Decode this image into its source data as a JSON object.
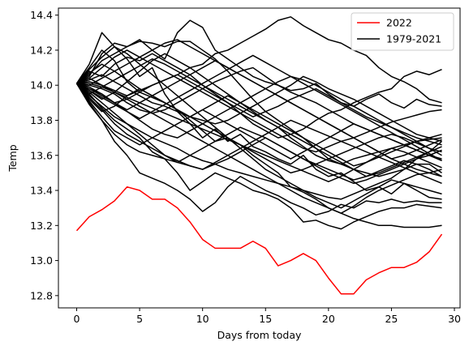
{
  "chart_data": {
    "type": "line",
    "title": "",
    "xlabel": "Days from today",
    "ylabel": "Temp",
    "xlim": [
      -1.45,
      30.45
    ],
    "ylim": [
      12.73,
      14.44
    ],
    "xticks": [
      0,
      5,
      10,
      15,
      20,
      25,
      30
    ],
    "yticks": [
      12.8,
      13.0,
      13.2,
      13.4,
      13.6,
      13.8,
      14.0,
      14.2,
      14.4
    ],
    "grid": false,
    "legend": {
      "placement": "top-right",
      "entries": [
        "2022",
        "1979-2021"
      ]
    },
    "colors": {
      "highlight": "#ff0000",
      "historical": "#000000"
    },
    "x": [
      0,
      1,
      2,
      3,
      4,
      5,
      6,
      7,
      8,
      9,
      10,
      11,
      12,
      13,
      14,
      15,
      16,
      17,
      18,
      19,
      20,
      21,
      22,
      23,
      24,
      25,
      26,
      27,
      28,
      29
    ],
    "series": [
      {
        "name": "2022",
        "color": "#ff0000",
        "values": [
          13.17,
          13.25,
          13.29,
          13.34,
          13.42,
          13.4,
          13.35,
          13.35,
          13.3,
          13.22,
          13.12,
          13.07,
          13.07,
          13.07,
          13.11,
          13.07,
          12.97,
          13.0,
          13.04,
          13.0,
          12.9,
          12.81,
          12.81,
          12.89,
          12.93,
          12.96,
          12.96,
          12.99,
          13.05,
          13.15
        ]
      },
      {
        "name": "1979-2021",
        "color": "#000000",
        "group": "historical",
        "members": [
          [
            14.01,
            14.12,
            14.3,
            14.22,
            14.15,
            14.05,
            14.1,
            13.95,
            13.85,
            13.78,
            13.7,
            13.75,
            13.68,
            13.72,
            13.65,
            13.62,
            13.58,
            13.55,
            13.6,
            13.52,
            13.48,
            13.5,
            13.45,
            13.4,
            13.42,
            13.38,
            13.44,
            13.4,
            13.36,
            13.35
          ],
          [
            14.01,
            14.05,
            14.18,
            14.24,
            14.22,
            14.26,
            14.2,
            14.15,
            14.3,
            14.37,
            14.33,
            14.2,
            14.15,
            14.1,
            14.05,
            14.02,
            14.0,
            13.97,
            13.98,
            14.01,
            13.95,
            13.9,
            13.88,
            13.92,
            13.95,
            13.9,
            13.87,
            13.92,
            13.89,
            13.88
          ],
          [
            14.01,
            13.98,
            13.95,
            13.9,
            13.92,
            13.96,
            14.0,
            14.03,
            14.06,
            14.1,
            14.12,
            14.18,
            14.2,
            14.24,
            14.28,
            14.32,
            14.37,
            14.39,
            14.34,
            14.3,
            14.26,
            14.24,
            14.2,
            14.17,
            14.1,
            14.05,
            14.02,
            13.98,
            13.92,
            13.9
          ],
          [
            14.01,
            13.95,
            13.87,
            13.8,
            13.75,
            13.7,
            13.62,
            13.58,
            13.5,
            13.4,
            13.45,
            13.5,
            13.47,
            13.44,
            13.4,
            13.38,
            13.35,
            13.3,
            13.22,
            13.23,
            13.2,
            13.18,
            13.22,
            13.25,
            13.28,
            13.3,
            13.3,
            13.32,
            13.31,
            13.3
          ],
          [
            14.01,
            13.9,
            13.8,
            13.68,
            13.6,
            13.5,
            13.47,
            13.44,
            13.4,
            13.35,
            13.28,
            13.33,
            13.42,
            13.48,
            13.44,
            13.4,
            13.37,
            13.33,
            13.3,
            13.26,
            13.28,
            13.32,
            13.3,
            13.34,
            13.33,
            13.35,
            13.33,
            13.34,
            13.33,
            13.33
          ],
          [
            14.01,
            14.06,
            14.14,
            14.18,
            14.22,
            14.25,
            14.24,
            14.22,
            14.25,
            14.25,
            14.2,
            14.15,
            14.08,
            14.0,
            13.92,
            13.85,
            13.8,
            13.75,
            13.7,
            13.64,
            13.58,
            13.55,
            13.52,
            13.5,
            13.48,
            13.5,
            13.52,
            13.55,
            13.55,
            13.5
          ],
          [
            14.01,
            14.1,
            14.2,
            14.14,
            14.02,
            13.96,
            13.93,
            13.9,
            13.86,
            13.8,
            13.74,
            13.68,
            13.7,
            13.66,
            13.6,
            13.55,
            13.5,
            13.42,
            13.39,
            13.35,
            13.3,
            13.27,
            13.31,
            13.36,
            13.4,
            13.43,
            13.46,
            13.49,
            13.5,
            13.52
          ],
          [
            14.01,
            14.08,
            14.05,
            14.12,
            14.16,
            14.14,
            14.18,
            14.14,
            14.1,
            14.06,
            14.0,
            13.95,
            13.9,
            13.84,
            13.78,
            13.74,
            13.7,
            13.72,
            13.75,
            13.8,
            13.84,
            13.86,
            13.9,
            13.93,
            13.96,
            13.98,
            14.05,
            14.08,
            14.06,
            14.09
          ],
          [
            14.01,
            13.94,
            13.88,
            13.82,
            13.78,
            13.74,
            13.7,
            13.67,
            13.64,
            13.6,
            13.57,
            13.55,
            13.52,
            13.5,
            13.48,
            13.46,
            13.44,
            13.42,
            13.4,
            13.38,
            13.36,
            13.35,
            13.38,
            13.41,
            13.44,
            13.47,
            13.52,
            13.58,
            13.62,
            13.68
          ],
          [
            14.01,
            14.03,
            14.06,
            14.02,
            13.98,
            13.94,
            13.9,
            13.88,
            13.85,
            13.82,
            13.8,
            13.78,
            13.8,
            13.84,
            13.88,
            13.92,
            13.96,
            14.0,
            14.05,
            14.02,
            13.98,
            13.95,
            13.92,
            13.88,
            13.84,
            13.8,
            13.76,
            13.72,
            13.7,
            13.68
          ],
          [
            14.01,
            13.97,
            13.92,
            13.96,
            14.02,
            14.08,
            14.14,
            14.18,
            14.14,
            14.1,
            14.05,
            14.0,
            13.95,
            13.9,
            13.85,
            13.8,
            13.76,
            13.7,
            13.65,
            13.6,
            13.57,
            13.55,
            13.58,
            13.6,
            13.62,
            13.64,
            13.66,
            13.68,
            13.69,
            13.7
          ],
          [
            14.01,
            14.0,
            13.98,
            13.95,
            13.9,
            13.86,
            13.84,
            13.86,
            13.9,
            13.94,
            13.98,
            14.02,
            14.05,
            14.08,
            14.1,
            14.05,
            14.0,
            13.96,
            13.93,
            13.9,
            13.86,
            13.82,
            13.78,
            13.75,
            13.72,
            13.69,
            13.66,
            13.63,
            13.6,
            13.57
          ],
          [
            14.01,
            13.92,
            13.85,
            13.88,
            13.94,
            13.98,
            13.94,
            13.9,
            13.86,
            13.82,
            13.78,
            13.74,
            13.7,
            13.66,
            13.62,
            13.58,
            13.54,
            13.5,
            13.52,
            13.55,
            13.58,
            13.61,
            13.64,
            13.67,
            13.7,
            13.72,
            13.7,
            13.67,
            13.64,
            13.62
          ],
          [
            14.01,
            14.04,
            14.1,
            14.16,
            14.2,
            14.16,
            14.12,
            14.08,
            14.04,
            14.0,
            13.96,
            13.92,
            13.88,
            13.84,
            13.8,
            13.76,
            13.72,
            13.68,
            13.64,
            13.62,
            13.65,
            13.68,
            13.7,
            13.73,
            13.76,
            13.79,
            13.81,
            13.83,
            13.85,
            13.86
          ],
          [
            14.01,
            13.96,
            13.9,
            13.84,
            13.78,
            13.72,
            13.66,
            13.6,
            13.57,
            13.54,
            13.52,
            13.55,
            13.58,
            13.62,
            13.66,
            13.7,
            13.66,
            13.62,
            13.58,
            13.54,
            13.5,
            13.47,
            13.44,
            13.46,
            13.49,
            13.52,
            13.55,
            13.58,
            13.6,
            13.63
          ],
          [
            14.01,
            14.02,
            14.0,
            13.97,
            13.94,
            13.97,
            14.0,
            14.03,
            14.06,
            14.02,
            13.98,
            13.94,
            13.9,
            13.86,
            13.82,
            13.85,
            13.88,
            13.92,
            13.95,
            13.98,
            13.94,
            13.9,
            13.86,
            13.82,
            13.79,
            13.76,
            13.73,
            13.7,
            13.68,
            13.66
          ],
          [
            14.01,
            13.99,
            13.95,
            13.9,
            13.85,
            13.8,
            13.75,
            13.72,
            13.7,
            13.74,
            13.78,
            13.82,
            13.86,
            13.9,
            13.94,
            13.98,
            14.02,
            14.05,
            14.03,
            14.0,
            13.96,
            13.92,
            13.88,
            13.84,
            13.8,
            13.76,
            13.72,
            13.68,
            13.64,
            13.6
          ],
          [
            14.01,
            13.93,
            13.86,
            13.78,
            13.72,
            13.68,
            13.64,
            13.6,
            13.56,
            13.6,
            13.64,
            13.68,
            13.72,
            13.76,
            13.73,
            13.7,
            13.66,
            13.62,
            13.58,
            13.55,
            13.52,
            13.49,
            13.46,
            13.48,
            13.51,
            13.54,
            13.57,
            13.55,
            13.52,
            13.48
          ],
          [
            14.01,
            14.07,
            14.12,
            14.08,
            14.03,
            13.98,
            13.94,
            13.9,
            13.86,
            13.82,
            13.86,
            13.9,
            13.94,
            13.9,
            13.86,
            13.82,
            13.78,
            13.74,
            13.7,
            13.66,
            13.62,
            13.58,
            13.54,
            13.56,
            13.59,
            13.62,
            13.65,
            13.68,
            13.7,
            13.72
          ],
          [
            14.01,
            13.98,
            13.94,
            13.9,
            13.86,
            13.9,
            13.94,
            13.98,
            14.02,
            14.06,
            14.1,
            14.14,
            14.1,
            14.06,
            14.02,
            13.98,
            13.94,
            13.9,
            13.86,
            13.82,
            13.78,
            13.74,
            13.7,
            13.66,
            13.62,
            13.58,
            13.55,
            13.52,
            13.5,
            13.48
          ],
          [
            14.01,
            14.01,
            13.99,
            13.96,
            13.93,
            13.9,
            13.87,
            13.84,
            13.81,
            13.78,
            13.75,
            13.72,
            13.69,
            13.66,
            13.63,
            13.6,
            13.57,
            13.54,
            13.51,
            13.48,
            13.45,
            13.48,
            13.52,
            13.56,
            13.6,
            13.64,
            13.62,
            13.59,
            13.56,
            13.53
          ],
          [
            14.01,
            13.91,
            13.82,
            13.74,
            13.7,
            13.66,
            13.7,
            13.74,
            13.78,
            13.82,
            13.86,
            13.82,
            13.78,
            13.74,
            13.7,
            13.66,
            13.62,
            13.58,
            13.62,
            13.66,
            13.7,
            13.74,
            13.78,
            13.75,
            13.72,
            13.69,
            13.66,
            13.63,
            13.6,
            13.58
          ],
          [
            14.01,
            14.09,
            14.16,
            14.22,
            14.18,
            14.12,
            14.06,
            14.0,
            13.94,
            13.88,
            13.82,
            13.76,
            13.7,
            13.64,
            13.58,
            13.52,
            13.48,
            13.44,
            13.4,
            13.36,
            13.33,
            13.3,
            13.34,
            13.38,
            13.42,
            13.46,
            13.44,
            13.42,
            13.4,
            13.38
          ],
          [
            14.01,
            13.97,
            13.93,
            13.89,
            13.85,
            13.81,
            13.85,
            13.89,
            13.93,
            13.97,
            14.01,
            14.05,
            14.09,
            14.13,
            14.17,
            14.13,
            14.09,
            14.05,
            14.01,
            13.97,
            13.93,
            13.89,
            13.85,
            13.81,
            13.77,
            13.73,
            13.69,
            13.65,
            13.61,
            13.57
          ],
          [
            14.01,
            14.04,
            14.0,
            13.96,
            13.92,
            13.88,
            13.84,
            13.8,
            13.76,
            13.72,
            13.68,
            13.64,
            13.6,
            13.56,
            13.52,
            13.48,
            13.44,
            13.4,
            13.36,
            13.33,
            13.3,
            13.27,
            13.24,
            13.22,
            13.2,
            13.2,
            13.19,
            13.19,
            13.19,
            13.2
          ],
          [
            14.01,
            13.95,
            13.99,
            14.03,
            14.07,
            14.11,
            14.15,
            14.12,
            14.08,
            14.04,
            14.0,
            13.96,
            13.92,
            13.88,
            13.84,
            13.8,
            13.76,
            13.72,
            13.68,
            13.64,
            13.6,
            13.56,
            13.52,
            13.48,
            13.5,
            13.53,
            13.56,
            13.59,
            13.62,
            13.65
          ],
          [
            14.01,
            13.89,
            13.8,
            13.72,
            13.66,
            13.62,
            13.6,
            13.58,
            13.56,
            13.54,
            13.52,
            13.56,
            13.6,
            13.64,
            13.68,
            13.72,
            13.76,
            13.8,
            13.77,
            13.74,
            13.71,
            13.68,
            13.65,
            13.62,
            13.59,
            13.56,
            13.53,
            13.5,
            13.47,
            13.44
          ],
          [
            14.01,
            14.0,
            14.04,
            14.08,
            14.12,
            14.16,
            14.2,
            14.24,
            14.26,
            14.22,
            14.18,
            14.14,
            14.1,
            14.06,
            14.02,
            13.98,
            13.94,
            13.9,
            13.86,
            13.82,
            13.78,
            13.74,
            13.7,
            13.66,
            13.62,
            13.58,
            13.6,
            13.63,
            13.66,
            13.69
          ]
        ]
      }
    ]
  }
}
